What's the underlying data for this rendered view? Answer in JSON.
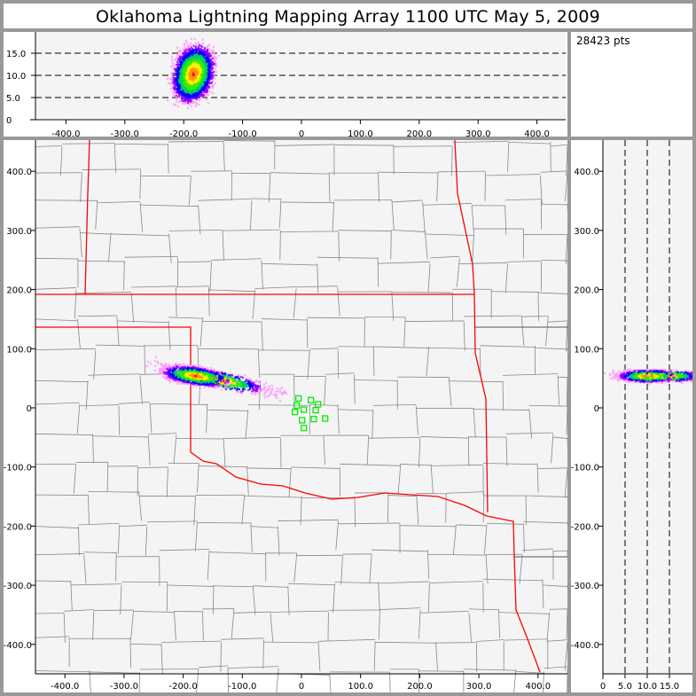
{
  "title": "Oklahoma Lightning Mapping Array   1100 UTC  May 5, 2009",
  "info": {
    "points_label": "28423 pts"
  },
  "colors": {
    "background_frame": "#999999",
    "plot_bg": "#f4f4f4",
    "state_border": "#ff0000",
    "county_line": "#888888",
    "station": "#00ee00",
    "density_scale": [
      "#ff99ff",
      "#9900ff",
      "#0000ff",
      "#00cc66",
      "#33ee00",
      "#ffee00",
      "#ff9900",
      "#ff0044"
    ]
  },
  "top_panel": {
    "x_ticks": [
      "-400.0",
      "-300.0",
      "-200.0",
      "-100.0",
      "0",
      "100.0",
      "200.0",
      "300.0",
      "400.0"
    ],
    "x_tick_values": [
      -400,
      -300,
      -200,
      -100,
      0,
      100,
      200,
      300,
      400
    ],
    "y_ticks": [
      "0",
      "5.0",
      "10.0",
      "15.0"
    ],
    "y_tick_values": [
      0,
      5,
      10,
      15
    ],
    "dashed_levels": [
      5,
      10,
      15
    ],
    "xlim": [
      -450,
      450
    ],
    "ylim": [
      0,
      20
    ]
  },
  "main_map": {
    "x_ticks": [
      "-400.0",
      "-300.0",
      "-200.0",
      "-100.0",
      "0",
      "100.0",
      "200.0",
      "300.0",
      "400.0"
    ],
    "x_tick_values": [
      -400,
      -300,
      -200,
      -100,
      0,
      100,
      200,
      300,
      400
    ],
    "y_ticks": [
      "400.0",
      "300.0",
      "200.0",
      "100.0",
      "0",
      "-100.0",
      "-200.0",
      "-300.0",
      "-400.0"
    ],
    "y_tick_values": [
      400,
      300,
      200,
      100,
      0,
      -100,
      -200,
      -300,
      -400
    ],
    "xlim": [
      -450,
      450
    ],
    "ylim": [
      -450,
      450
    ],
    "stations_km": [
      [
        -5,
        16
      ],
      [
        16,
        13
      ],
      [
        28,
        6
      ],
      [
        -8,
        4
      ],
      [
        4,
        -3
      ],
      [
        -11,
        -7
      ],
      [
        24,
        -4
      ],
      [
        21,
        -19
      ],
      [
        40,
        -18
      ],
      [
        1,
        -21
      ],
      [
        4,
        -34
      ]
    ],
    "cluster_center_km": [
      -180,
      55
    ]
  },
  "side_panel": {
    "x_ticks": [
      "0",
      "5.0",
      "10.0",
      "15.0"
    ],
    "x_tick_values": [
      0,
      5,
      10,
      15
    ],
    "y_ticks": [
      "400.0",
      "300.0",
      "200.0",
      "100.0",
      "0",
      "-100.0",
      "-200.0",
      "-300.0",
      "-400.0"
    ],
    "y_tick_values": [
      400,
      300,
      200,
      100,
      0,
      -100,
      -200,
      -300,
      -400
    ],
    "dashed_levels": [
      5,
      10,
      15
    ],
    "xlim": [
      0,
      20
    ],
    "ylim": [
      -450,
      450
    ]
  }
}
